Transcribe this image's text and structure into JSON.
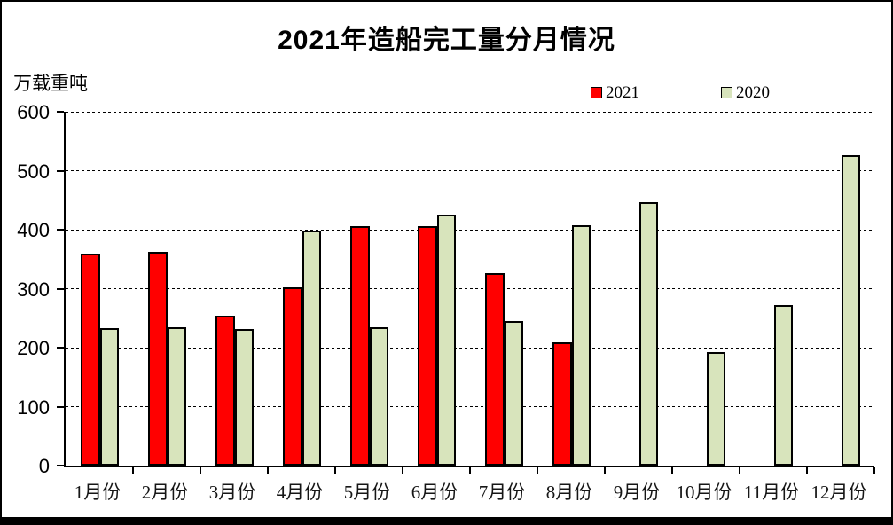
{
  "chart_data": {
    "type": "bar",
    "title": "2021年造船完工量分月情况",
    "ylabel": "万载重吨",
    "xlabel": "",
    "categories": [
      "1月份",
      "2月份",
      "3月份",
      "4月份",
      "5月份",
      "6月份",
      "7月份",
      "8月份",
      "9月份",
      "10月份",
      "11月份",
      "12月份"
    ],
    "series": [
      {
        "name": "2021",
        "color": "#FF0000",
        "values": [
          360,
          362,
          254,
          303,
          406,
          406,
          327,
          209,
          null,
          null,
          null,
          null
        ]
      },
      {
        "name": "2020",
        "color": "#D8E4BC",
        "values": [
          233,
          234,
          232,
          398,
          235,
          426,
          245,
          407,
          446,
          193,
          272,
          527
        ]
      }
    ],
    "ylim": [
      0,
      600
    ],
    "yticks": [
      600,
      500,
      400,
      300,
      200,
      100,
      0
    ],
    "grid": "horizontal-dashed",
    "legend_position": "top-right",
    "bar_border_color": "#000000"
  }
}
